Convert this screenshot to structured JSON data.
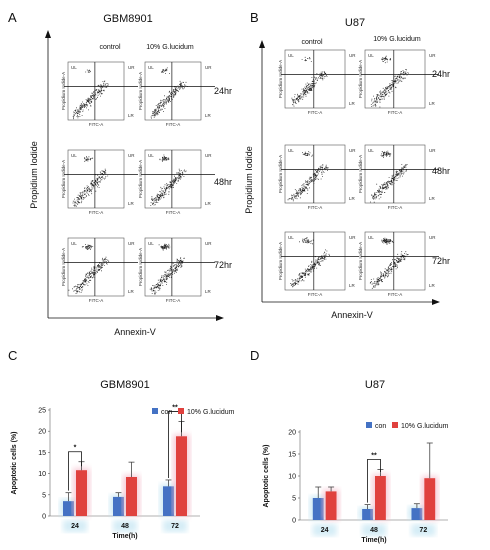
{
  "panels": {
    "A": {
      "letter": "A",
      "title": "GBM8901",
      "col1": "control",
      "col2": "10% G.lucidum",
      "times": [
        "24hr",
        "48hr",
        "72hr"
      ],
      "ylabel": "Propidium  Iodide",
      "xlabel": "Annexin-V"
    },
    "B": {
      "letter": "B",
      "title": "U87",
      "col1": "control",
      "col2": "10% G.lucidum",
      "times": [
        "24hr",
        "48hr",
        "72hr"
      ],
      "ylabel": "Propidium  Iodide",
      "xlabel": "Annexin-V"
    }
  },
  "flow_labels": {
    "ul": "UL",
    "ur": "UR",
    "ll": "LL",
    "lr": "LR",
    "x": "FITC-A",
    "y": "Propidium Iodide-A"
  },
  "colors": {
    "con": "#4472c4",
    "treat": "#e0413e",
    "treat_glow": "#f4b8c8",
    "con_glow": "#b8e0f0"
  },
  "chart_data": [
    {
      "letter": "C",
      "type": "bar",
      "title": "GBM8901",
      "categories": [
        "24",
        "48",
        "72"
      ],
      "xlabel": "Time(h)",
      "ylabel": "Apoptotic cells (%)",
      "ylim": [
        0,
        25
      ],
      "yticks": [
        0,
        5,
        10,
        15,
        20,
        25
      ],
      "series": [
        {
          "name": "con",
          "values": [
            3.5,
            4.5,
            7.0
          ],
          "errors": [
            2.0,
            1.0,
            1.5
          ]
        },
        {
          "name": "10% G.lucidum",
          "values": [
            10.8,
            9.2,
            18.8
          ],
          "errors": [
            2.0,
            3.5,
            3.5
          ]
        }
      ],
      "significance": [
        {
          "category": "24",
          "label": "*"
        },
        {
          "category": "72",
          "label": "**"
        }
      ],
      "legend": "top-right"
    },
    {
      "letter": "D",
      "type": "bar",
      "title": "U87",
      "categories": [
        "24",
        "48",
        "72"
      ],
      "xlabel": "Time(h)",
      "ylabel": "Apoptotic cells (%)",
      "ylim": [
        0,
        20
      ],
      "yticks": [
        0,
        5,
        10,
        15,
        20
      ],
      "series": [
        {
          "name": "con",
          "values": [
            5.0,
            2.5,
            2.7
          ],
          "errors": [
            2.5,
            1.0,
            1.0
          ]
        },
        {
          "name": "10% G.lucidum",
          "values": [
            6.5,
            10.0,
            9.5
          ],
          "errors": [
            1.0,
            1.5,
            8.0
          ]
        }
      ],
      "significance": [
        {
          "category": "48",
          "label": "**"
        }
      ],
      "legend": "top-right"
    }
  ]
}
